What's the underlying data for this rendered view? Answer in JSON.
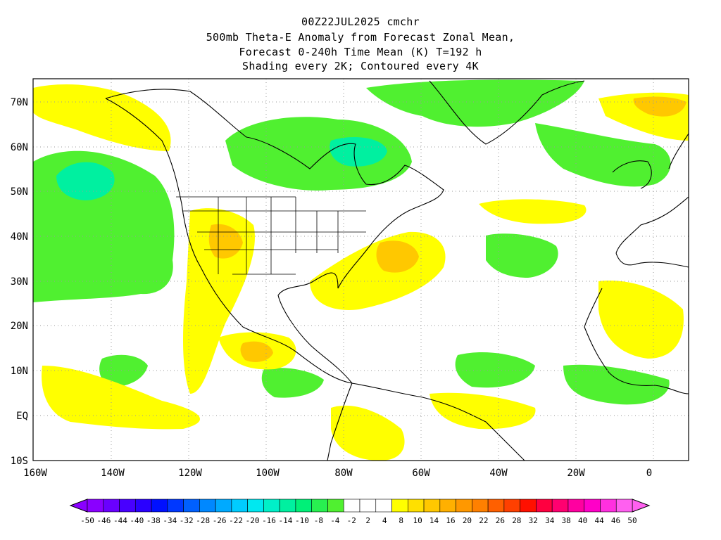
{
  "title": {
    "line1": "00Z22JUL2025 cmchr",
    "line2": "500mb Theta-E Anomaly from Forecast Zonal Mean,",
    "line3": "Forecast 0-240h Time Mean (K) T=192 h",
    "line4": "Shading every 2K; Contoured every 4K"
  },
  "map": {
    "lat_labels": [
      "70N",
      "60N",
      "50N",
      "40N",
      "30N",
      "20N",
      "10N",
      "EQ",
      "10S"
    ],
    "lon_labels": [
      "160W",
      "140W",
      "120W",
      "100W",
      "80W",
      "60W",
      "40W",
      "20W",
      "0"
    ]
  },
  "colorbar": {
    "labels": [
      "-50",
      "-46",
      "-44",
      "-40",
      "-38",
      "-34",
      "-32",
      "-28",
      "-26",
      "-22",
      "-20",
      "-16",
      "-14",
      "-10",
      "-8",
      "-4",
      "-2",
      "2",
      "4",
      "8",
      "10",
      "14",
      "16",
      "20",
      "22",
      "26",
      "28",
      "32",
      "34",
      "38",
      "40",
      "44",
      "46",
      "50"
    ],
    "colors": [
      "#8a00ff",
      "#6a00ff",
      "#4800ff",
      "#2a00ff",
      "#0010ff",
      "#0038ff",
      "#0060ff",
      "#0088ff",
      "#00aaff",
      "#00ccff",
      "#00e8f0",
      "#00f0c8",
      "#00f0a0",
      "#00f078",
      "#28f050",
      "#50f030",
      "#ffffff",
      "#ffffff",
      "#ffffff",
      "#ffff00",
      "#ffe000",
      "#ffc800",
      "#ffb000",
      "#ff9800",
      "#ff8000",
      "#ff6000",
      "#ff4000",
      "#ff1000",
      "#ff0040",
      "#ff0070",
      "#ff00a0",
      "#ff00c8",
      "#ff30e0",
      "#ff60f0"
    ]
  }
}
